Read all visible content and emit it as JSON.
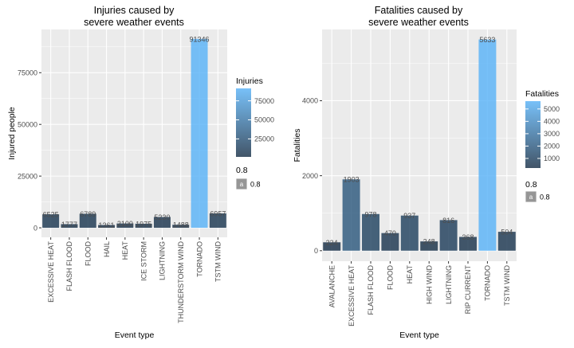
{
  "chart_data": [
    {
      "type": "bar",
      "title": "Injuries caused by\nsevere weather events",
      "xlabel": "Event type",
      "ylabel": "Injured people",
      "categories": [
        "EXCESSIVE HEAT",
        "FLASH FLOOD",
        "FLOOD",
        "HAIL",
        "HEAT",
        "ICE STORM",
        "LIGHTNING",
        "THUNDERSTORM WIND",
        "TORNADO",
        "TSTM WIND"
      ],
      "values": [
        6525,
        1777,
        6789,
        1361,
        2100,
        1975,
        5230,
        1488,
        91346,
        6957
      ],
      "yticks": [
        0,
        25000,
        50000,
        75000
      ],
      "ylim": [
        -4600,
        95900
      ],
      "grid": true,
      "fill_scale": {
        "title": "Injuries",
        "min": 1361,
        "max": 91346,
        "ticks": [
          25000,
          50000,
          75000
        ],
        "low_color": "#132b43",
        "high_color": "#56b1f7"
      },
      "alpha_legend": {
        "title": "0.8",
        "key_glyph": "a",
        "label": "0.8"
      }
    },
    {
      "type": "bar",
      "title": "Fatalities caused by\nsevere weather events",
      "xlabel": "Event type",
      "ylabel": "Fatalities",
      "categories": [
        "AVALANCHE",
        "EXCESSIVE HEAT",
        "FLASH FLOOD",
        "FLOOD",
        "HEAT",
        "HIGH WIND",
        "LIGHTNING",
        "RIP CURRENT",
        "TORNADO",
        "TSTM WIND"
      ],
      "values": [
        224,
        1903,
        978,
        470,
        937,
        248,
        816,
        368,
        5633,
        504
      ],
      "yticks": [
        0,
        2000,
        4000
      ],
      "ylim": [
        -280,
        5900
      ],
      "grid": true,
      "fill_scale": {
        "title": "Fatalities",
        "min": 224,
        "max": 5633,
        "ticks": [
          1000,
          2000,
          3000,
          4000,
          5000
        ],
        "low_color": "#132b43",
        "high_color": "#56b1f7"
      },
      "alpha_legend": {
        "title": "0.8",
        "key_glyph": "a",
        "label": "0.8"
      }
    }
  ]
}
